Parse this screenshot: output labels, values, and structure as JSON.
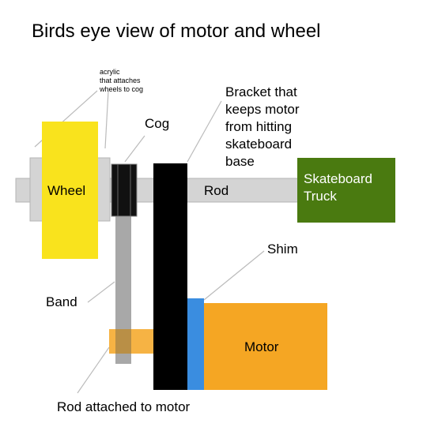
{
  "title": "Birds eye view of motor and wheel",
  "labels": {
    "acrylic": "acrylic\nthat attaches\nwheels to cog",
    "cog": "Cog",
    "bracket": "Bracket that\nkeeps motor\nfrom hitting\nskateboard\nbase",
    "rod": "Rod",
    "wheel": "Wheel",
    "truck": "Skateboard\nTruck",
    "shim": "Shim",
    "band": "Band",
    "motor": "Motor",
    "rod_motor": "Rod attached to motor"
  },
  "colors": {
    "wheel": "#f9e31d",
    "acrylic": "#d4d4d4",
    "rod": "#d4d4d4",
    "cog": "#111111",
    "bracket": "#000000",
    "truck": "#4a7a10",
    "shim": "#3a8de0",
    "motor": "#f5a623",
    "band": "#a8a8a8",
    "leader": "#bbbbbb"
  }
}
